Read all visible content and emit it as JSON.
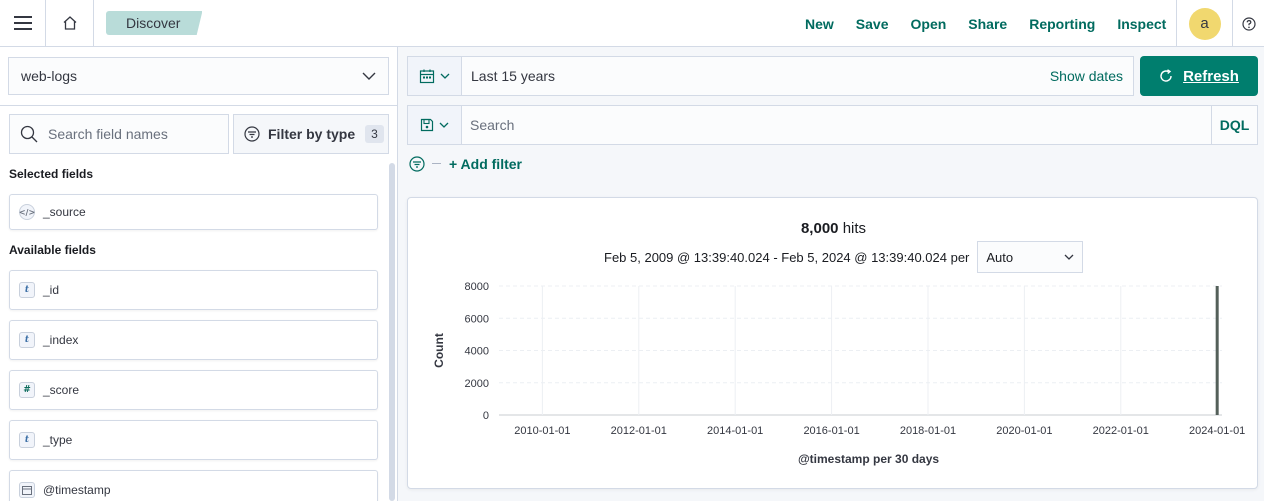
{
  "header": {
    "breadcrumb": "Discover",
    "actions": [
      "New",
      "Save",
      "Open",
      "Share",
      "Reporting",
      "Inspect"
    ],
    "avatar_initial": "a"
  },
  "sidebar": {
    "index_pattern": "web-logs",
    "search_placeholder": "Search field names",
    "filter_by_type_label": "Filter by type",
    "filter_count": "3",
    "selected_fields_title": "Selected fields",
    "selected_fields": [
      {
        "name": "_source",
        "type": "source"
      }
    ],
    "available_fields_title": "Available fields",
    "available_fields": [
      {
        "name": "_id",
        "type": "t"
      },
      {
        "name": "_index",
        "type": "t"
      },
      {
        "name": "_score",
        "type": "#"
      },
      {
        "name": "_type",
        "type": "t"
      },
      {
        "name": "@timestamp",
        "type": "date"
      }
    ]
  },
  "timebar": {
    "range_label": "Last 15 years",
    "show_dates_label": "Show dates",
    "refresh_label": "Refresh"
  },
  "querybar": {
    "placeholder": "Search",
    "language": "DQL",
    "add_filter_label": "+ Add filter"
  },
  "results": {
    "hits_count": "8,000",
    "hits_label": "hits",
    "range_text": "Feb 5, 2009 @ 13:39:40.024 - Feb 5, 2024 @ 13:39:40.024 per",
    "interval": "Auto"
  },
  "chart_data": {
    "type": "bar",
    "ylabel": "Count",
    "xlabel": "@timestamp per 30 days",
    "ylim": [
      0,
      8000
    ],
    "yticks": [
      0,
      2000,
      4000,
      6000,
      8000
    ],
    "xticks": [
      "2010-01-01",
      "2012-01-01",
      "2014-01-01",
      "2016-01-01",
      "2018-01-01",
      "2020-01-01",
      "2022-01-01",
      "2024-01-01"
    ],
    "x_range_years": [
      2009.1,
      2024.1
    ],
    "bars": [
      {
        "x_year": 2024.0,
        "value": 8000
      }
    ],
    "bar_color": "#54605a",
    "grid": true
  }
}
